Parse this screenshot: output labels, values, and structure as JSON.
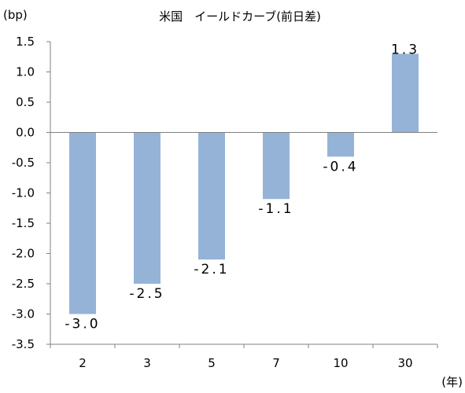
{
  "chart_data": {
    "type": "bar",
    "title": "米国　イールドカーブ(前日差)",
    "ylabel": "(bp)",
    "xlabel": "(年)",
    "categories": [
      "2",
      "3",
      "5",
      "7",
      "10",
      "30"
    ],
    "values": [
      -3.0,
      -2.5,
      -2.1,
      -1.1,
      -0.4,
      1.3
    ],
    "data_labels": [
      "-3.0",
      "-2.5",
      "-2.1",
      "-1.1",
      "-0.4",
      "1.3"
    ],
    "ylim": [
      -3.5,
      1.5
    ],
    "yticks": [
      1.5,
      1.0,
      0.5,
      0.0,
      -0.5,
      -1.0,
      -1.5,
      -2.0,
      -2.5,
      -3.0,
      -3.5
    ],
    "ytick_labels": [
      "1.5",
      "1.0",
      "0.5",
      "0.0",
      "-0.5",
      "-1.0",
      "-1.5",
      "-2.0",
      "-2.5",
      "-3.0",
      "-3.5"
    ],
    "grid": false,
    "legend": "none",
    "bar_color": "#95b3d7",
    "axis_color": "#808080"
  }
}
